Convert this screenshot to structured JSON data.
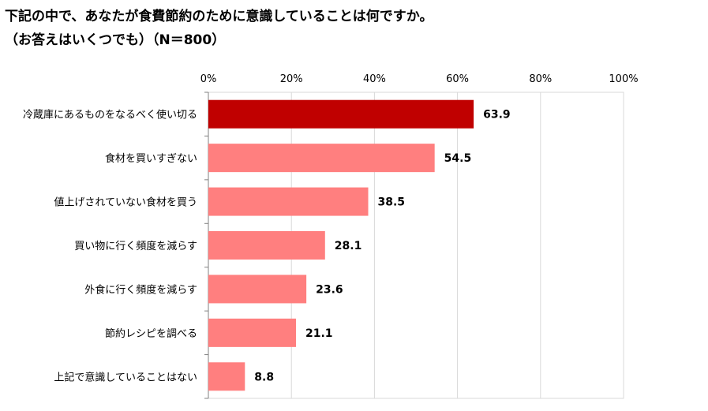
{
  "title_line1": "下記の中で、あなたが食費節約のために意識していることは何ですか。",
  "title_line2": "（お答えはいくつでも）（N＝800）",
  "colors": {
    "highlight": "#C00000",
    "bar": "#FF7F7F",
    "grid": "#D9D9D9",
    "axis": "#808080"
  },
  "chart_data": {
    "type": "bar",
    "orientation": "horizontal",
    "title": "下記の中で、あなたが食費節約のために意識していることは何ですか。（お答えはいくつでも）（N＝800）",
    "categories": [
      "冷蔵庫にあるものをなるべく使い切る",
      "食材を買いすぎない",
      "値上げされていない食材を買う",
      "買い物に行く頻度を減らす",
      "外食に行く頻度を減らす",
      "節約レシピを調べる",
      "上記で意識していることはない"
    ],
    "values": [
      63.9,
      54.5,
      38.5,
      28.1,
      23.6,
      21.1,
      8.8
    ],
    "value_labels": [
      "63.9",
      "54.5",
      "38.5",
      "28.1",
      "23.6",
      "21.1",
      "8.8"
    ],
    "xlim": [
      0,
      100
    ],
    "ticks": [
      0,
      20,
      40,
      60,
      80,
      100
    ],
    "tick_labels": [
      "0%",
      "20%",
      "40%",
      "60%",
      "80%",
      "100%"
    ],
    "grid": true
  }
}
